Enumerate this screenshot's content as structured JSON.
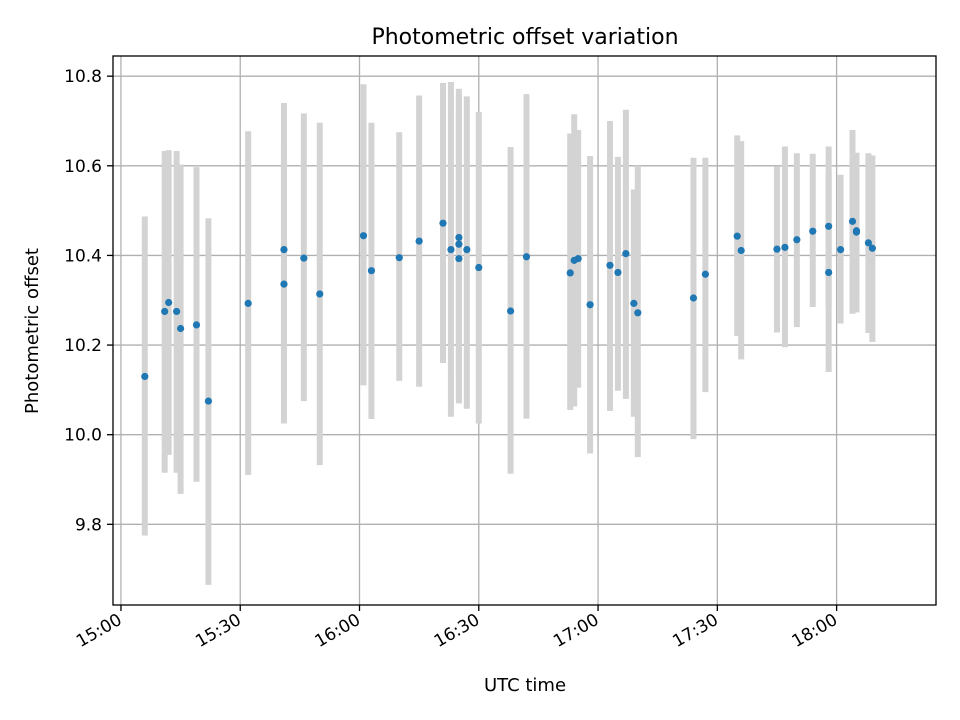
{
  "chart_data": {
    "type": "scatter",
    "title": "Photometric offset variation",
    "xlabel": "UTC time",
    "ylabel": "Photometric offset",
    "xlim": [
      "14:58",
      "18:25"
    ],
    "ylim": [
      9.62,
      10.845
    ],
    "x_ticks": [
      "15:00",
      "15:30",
      "16:00",
      "16:30",
      "17:00",
      "17:30",
      "18:00"
    ],
    "y_ticks": [
      "9.8",
      "10.0",
      "10.2",
      "10.4",
      "10.6",
      "10.8"
    ],
    "grid": true,
    "legend": "none",
    "point_color": "#1f77b4",
    "errorbar_color": "#d3d3d3",
    "series": [
      {
        "x": [
          "15:06",
          "15:11",
          "15:12",
          "15:14",
          "15:15",
          "15:19",
          "15:22",
          "15:32",
          "15:41",
          "15:41",
          "15:46",
          "15:50",
          "16:01",
          "16:03",
          "16:10",
          "16:15",
          "16:21",
          "16:23",
          "16:25",
          "16:25",
          "16:25",
          "16:27",
          "16:30",
          "16:38",
          "16:42",
          "16:53",
          "16:54",
          "16:55",
          "16:58",
          "17:03",
          "17:05",
          "17:07",
          "17:09",
          "17:10",
          "17:24",
          "17:27",
          "17:35",
          "17:36",
          "17:45",
          "17:47",
          "17:50",
          "17:54",
          "17:58",
          "17:58",
          "18:01",
          "18:04",
          "18:05",
          "18:05",
          "18:08",
          "18:09"
        ],
        "y": [
          10.13,
          10.275,
          10.295,
          10.275,
          10.237,
          10.245,
          10.075,
          10.293,
          10.413,
          10.336,
          10.394,
          10.314,
          10.444,
          10.366,
          10.395,
          10.432,
          10.472,
          10.413,
          10.393,
          10.425,
          10.44,
          10.413,
          10.373,
          10.276,
          10.397,
          10.361,
          10.389,
          10.393,
          10.29,
          10.378,
          10.362,
          10.404,
          10.293,
          10.272,
          10.305,
          10.358,
          10.443,
          10.411,
          10.414,
          10.418,
          10.435,
          10.454,
          10.362,
          10.465,
          10.413,
          10.476,
          10.455,
          10.452,
          10.428,
          10.416
        ],
        "err_low": [
          9.775,
          9.915,
          9.955,
          9.915,
          9.868,
          9.895,
          9.665,
          9.91,
          10.087,
          10.025,
          10.075,
          9.932,
          10.11,
          10.035,
          10.12,
          10.107,
          10.16,
          10.04,
          10.07,
          10.08,
          10.13,
          10.058,
          10.025,
          9.913,
          10.036,
          10.055,
          10.063,
          10.105,
          9.958,
          10.053,
          10.098,
          10.08,
          10.04,
          9.95,
          9.99,
          10.095,
          10.22,
          10.168,
          10.228,
          10.195,
          10.24,
          10.285,
          10.14,
          10.285,
          10.248,
          10.27,
          10.3,
          10.273,
          10.227,
          10.207
        ],
        "err_high": [
          10.487,
          10.633,
          10.635,
          10.633,
          10.603,
          10.597,
          10.483,
          10.677,
          10.74,
          10.653,
          10.717,
          10.696,
          10.782,
          10.696,
          10.675,
          10.757,
          10.785,
          10.787,
          10.72,
          10.757,
          10.772,
          10.755,
          10.72,
          10.642,
          10.76,
          10.672,
          10.715,
          10.68,
          10.622,
          10.7,
          10.62,
          10.725,
          10.547,
          10.6,
          10.618,
          10.618,
          10.668,
          10.655,
          10.598,
          10.643,
          10.628,
          10.627,
          10.583,
          10.643,
          10.58,
          10.68,
          10.6,
          10.629,
          10.628,
          10.623
        ]
      }
    ]
  }
}
